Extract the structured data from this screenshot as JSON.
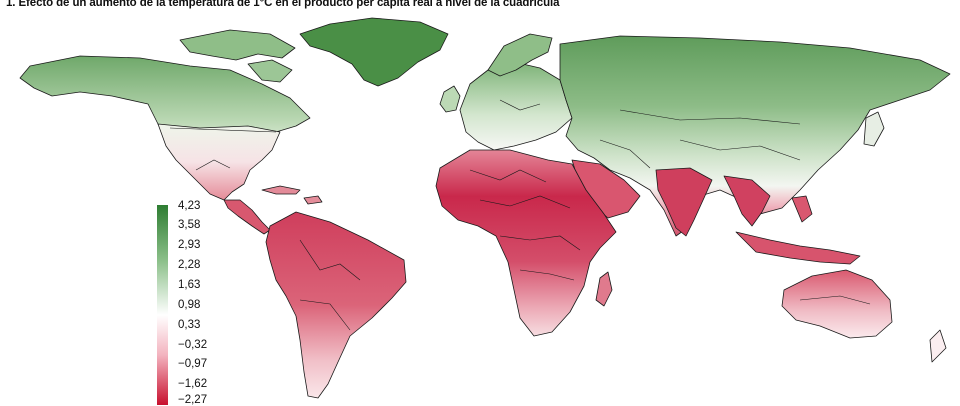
{
  "title": "1. Efecto de un aumento de la temperatura de 1°C en el producto per cápita real a nivel de la cuadrícula",
  "legend": {
    "labels": [
      "4,23",
      "3,58",
      "2,93",
      "2,28",
      "1,63",
      "0,98",
      "0,33",
      "−0,32",
      "−0,97",
      "−1,62",
      "−2,27"
    ],
    "colors": {
      "max": "#2e7d32",
      "mid": "#ffffff",
      "min": "#c8102e"
    }
  },
  "map": {
    "colors": {
      "strong_green": "#3f8a3f",
      "green": "#6fa86a",
      "light_green": "#a9cfa2",
      "pale": "#e8f1e4",
      "pale_red": "#f3c7cd",
      "red": "#de6f7f",
      "strong_red": "#c8284a",
      "border": "#1a1a1a"
    }
  }
}
